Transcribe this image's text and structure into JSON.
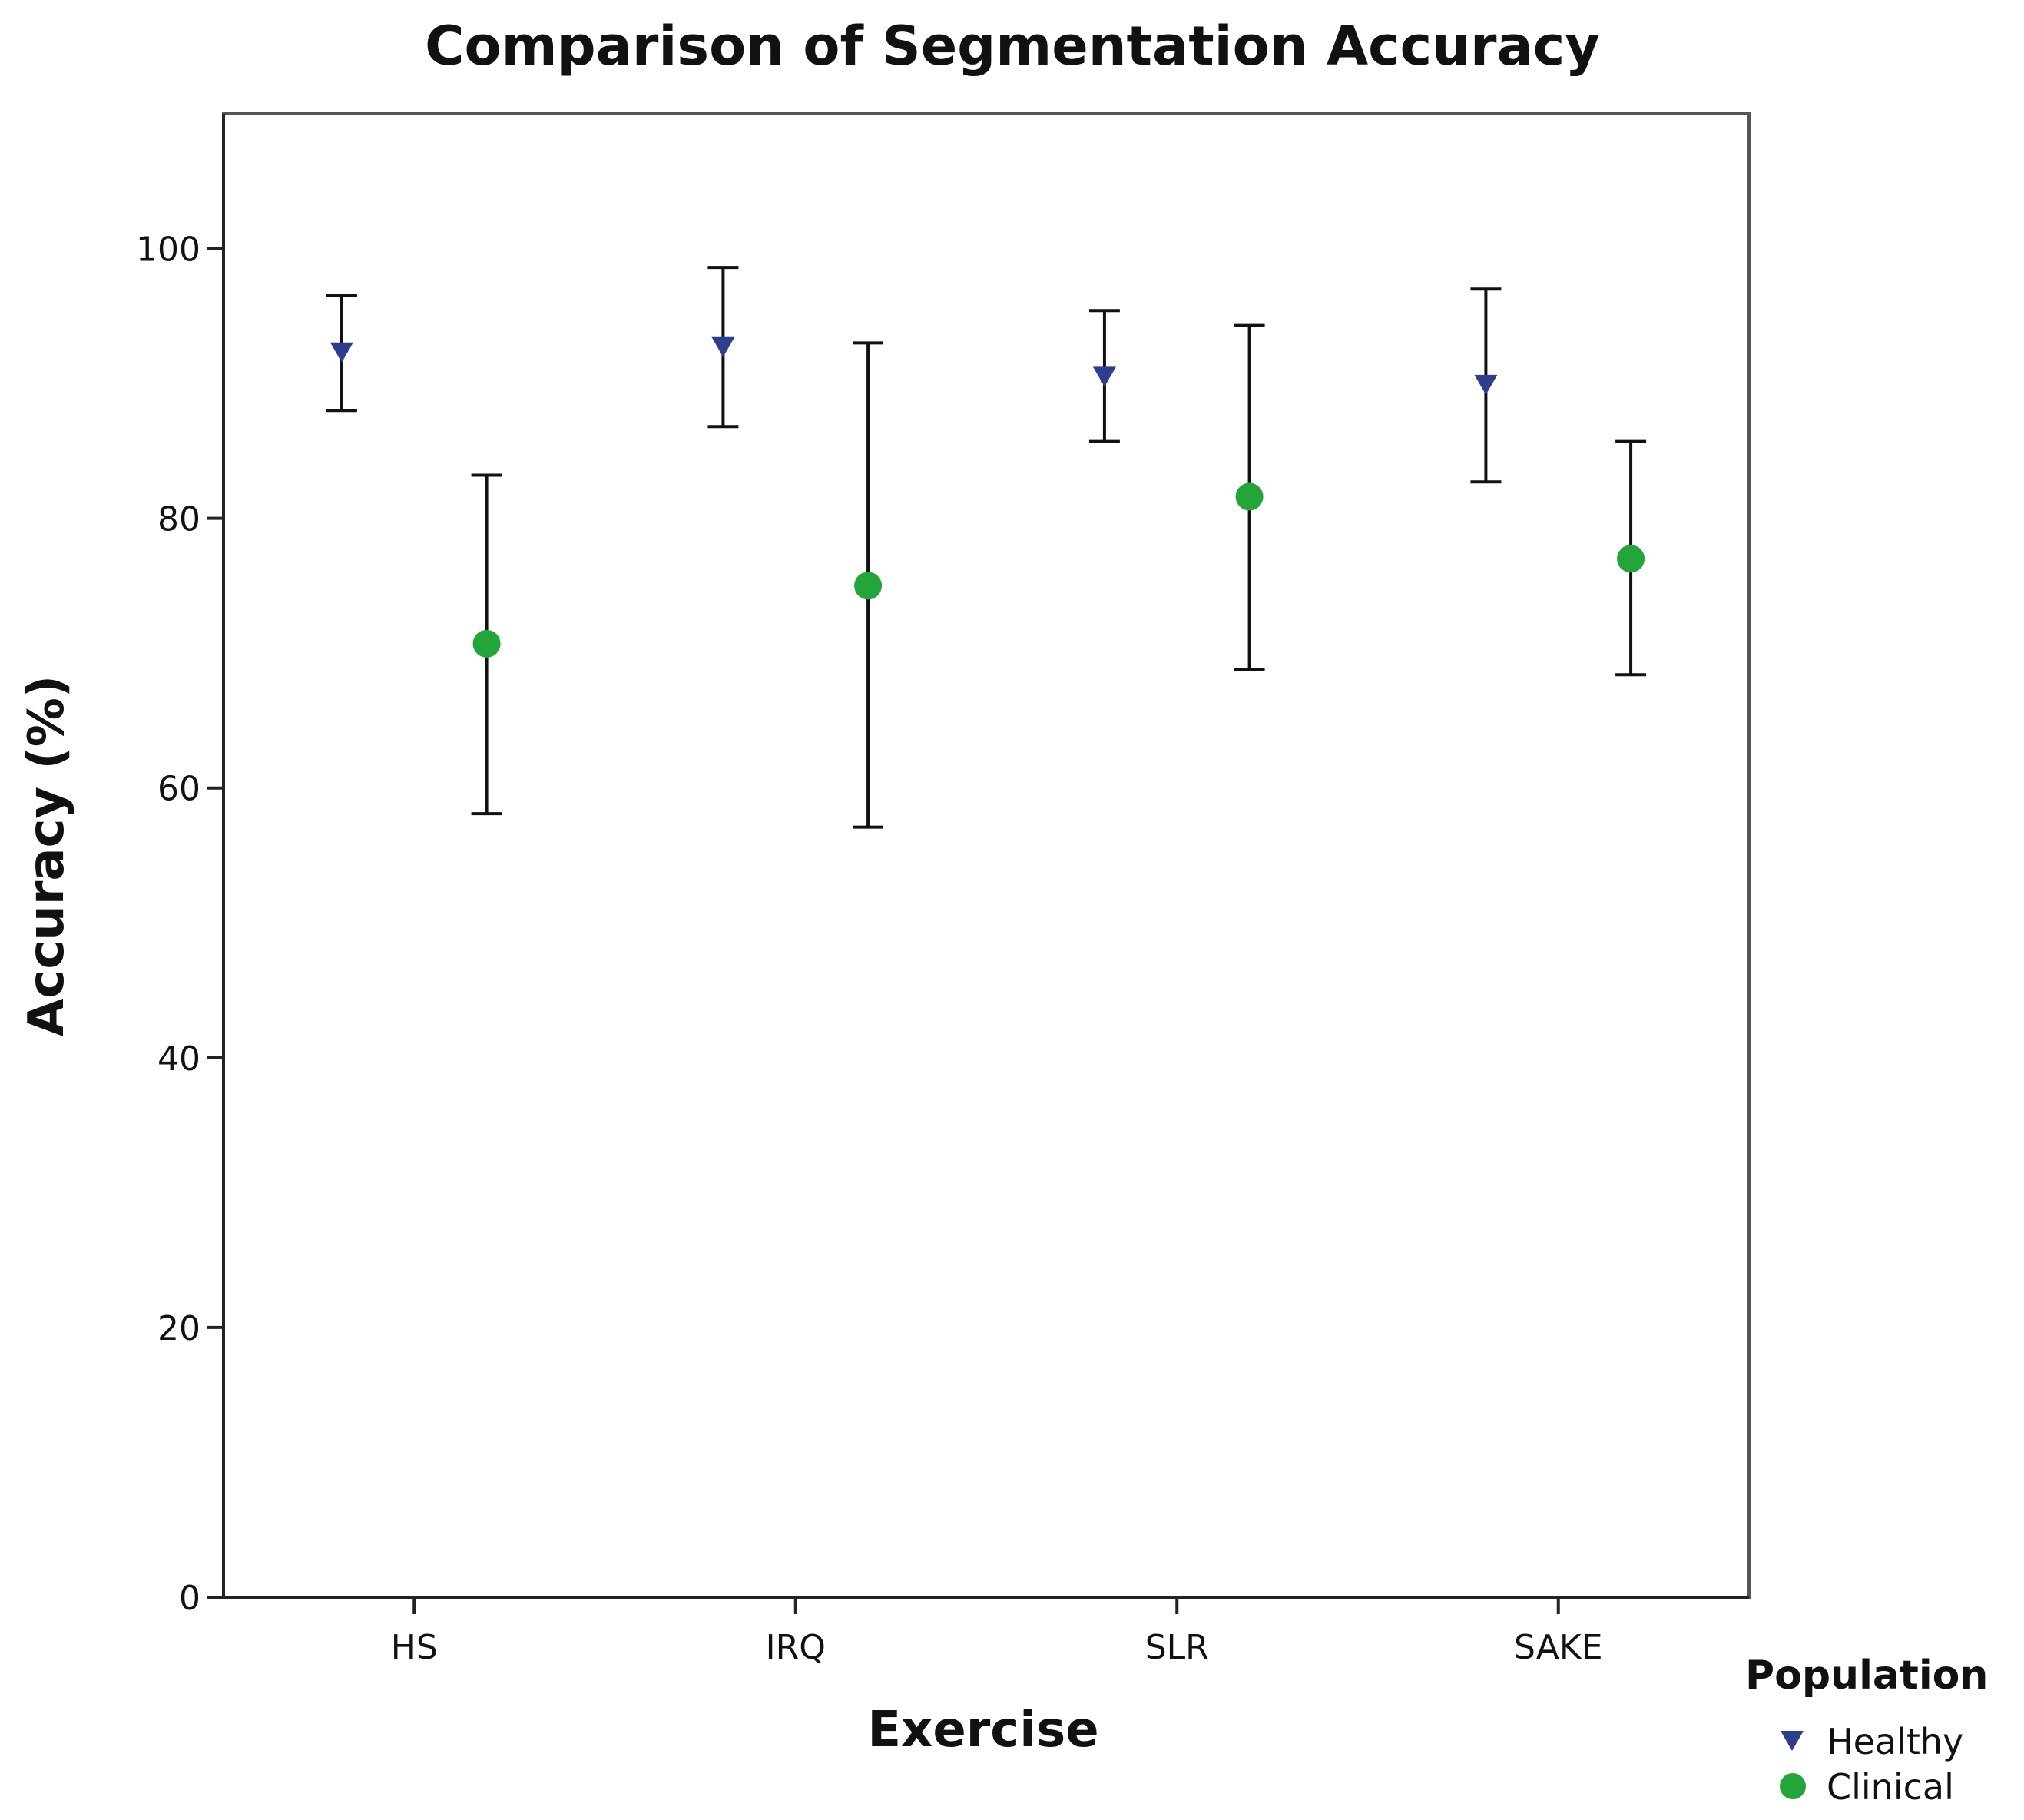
{
  "chart_data": {
    "type": "scatter",
    "subtype": "error-bar",
    "title": "Comparison of Segmentation Accuracy",
    "xlabel": "Exercise",
    "ylabel": "Accuracy (%)",
    "categories": [
      "HS",
      "IRQ",
      "SLR",
      "SAKE"
    ],
    "ylim": [
      0,
      110
    ],
    "yticks": [
      0,
      20,
      40,
      60,
      80,
      100
    ],
    "grid": false,
    "legend": {
      "title": "Population",
      "position": "bottom-right"
    },
    "series": [
      {
        "name": "Healthy",
        "marker": "triangle-down",
        "color": "#2d3f8c",
        "values": [
          92.3,
          92.7,
          90.5,
          89.9
        ],
        "lower": [
          88.0,
          86.8,
          85.7,
          82.7
        ],
        "upper": [
          96.5,
          98.6,
          95.4,
          97.0
        ]
      },
      {
        "name": "Clinical",
        "marker": "circle",
        "color": "#24a53a",
        "values": [
          70.7,
          75.0,
          81.6,
          77.0
        ],
        "lower": [
          58.1,
          57.1,
          68.8,
          68.4
        ],
        "upper": [
          83.2,
          93.0,
          94.3,
          85.7
        ]
      }
    ]
  }
}
